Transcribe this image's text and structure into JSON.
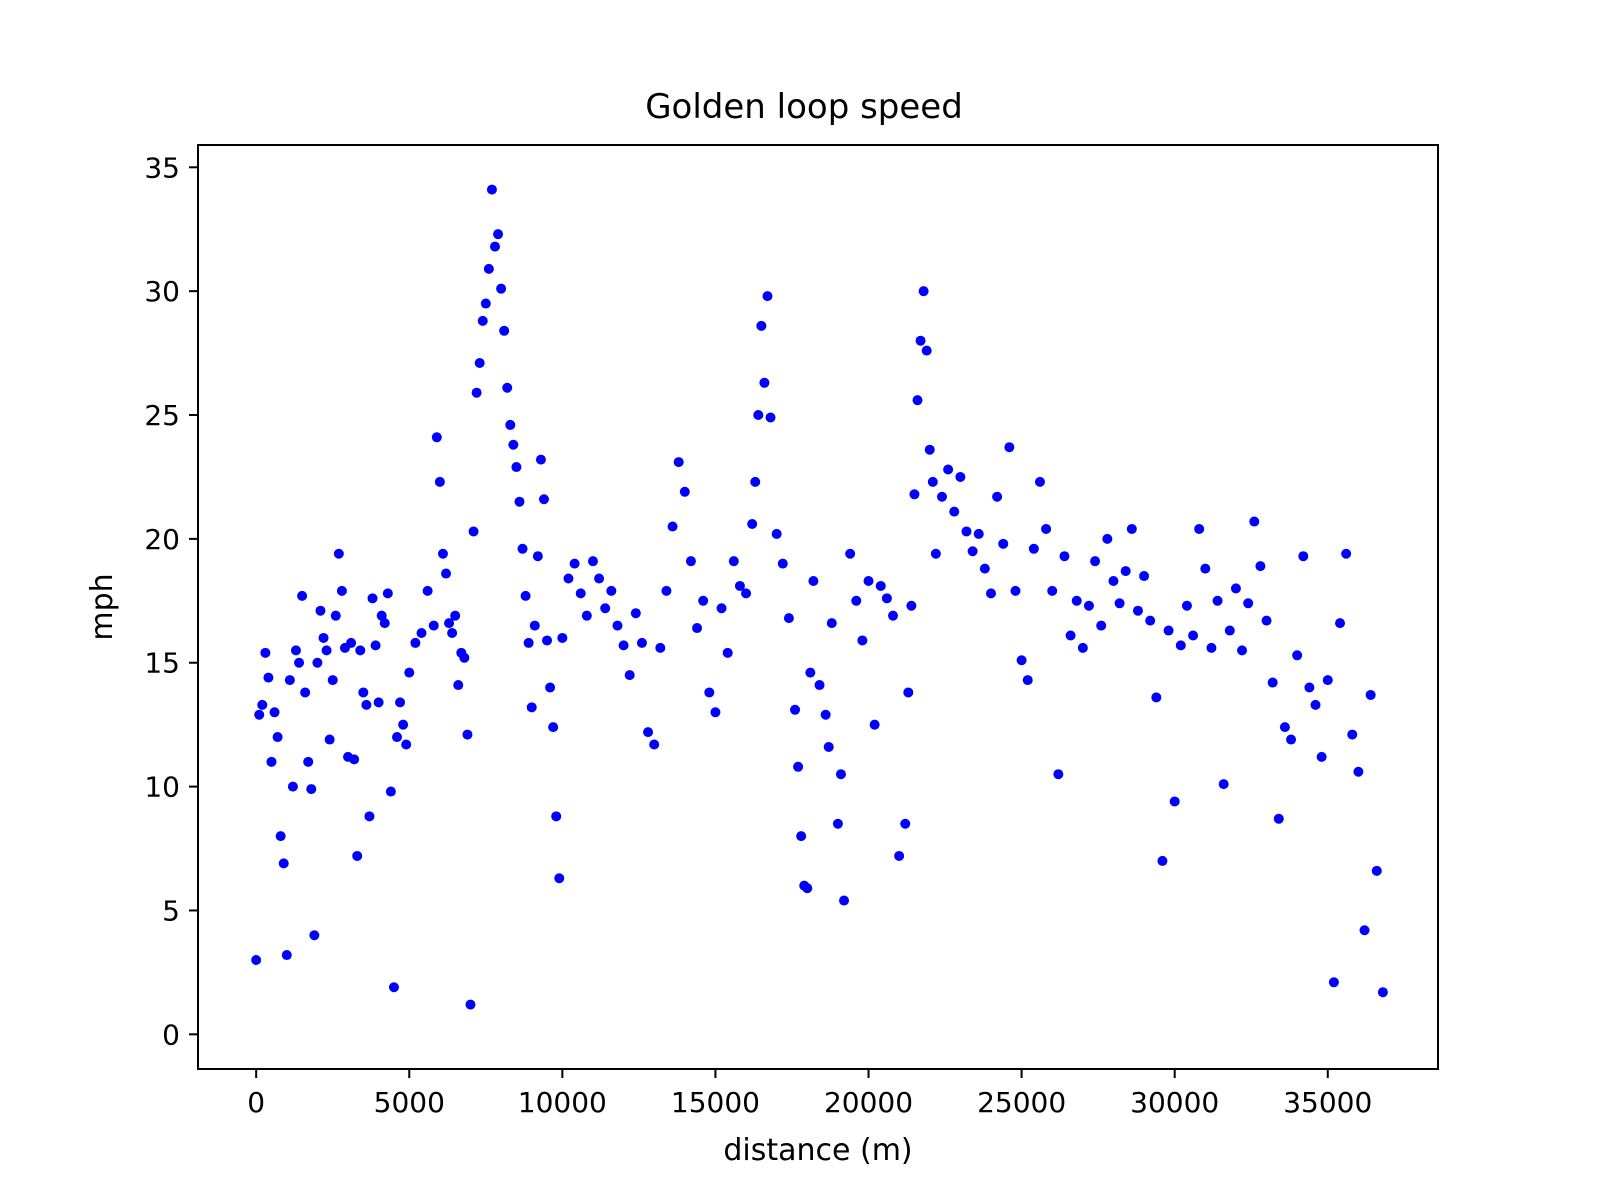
{
  "chart_data": {
    "type": "scatter",
    "title": "Golden loop speed",
    "xlabel": "distance (m)",
    "ylabel": "mph",
    "xlim": [
      -1900,
      38600
    ],
    "ylim": [
      -1.4,
      35.9
    ],
    "xticks": [
      0,
      5000,
      10000,
      15000,
      20000,
      25000,
      30000,
      35000
    ],
    "yticks": [
      0,
      5,
      10,
      15,
      20,
      25,
      30,
      35
    ],
    "grid": false,
    "legend": "none",
    "marker_color": "#0000ff",
    "series": [
      {
        "x": [
          0,
          100,
          200,
          300,
          400,
          500,
          600,
          700,
          800,
          900,
          1000,
          1100,
          1200,
          1300,
          1400,
          1500,
          1600,
          1700,
          1800,
          1900,
          2000,
          2100,
          2200,
          2300,
          2400,
          2500,
          2600,
          2700,
          2800,
          2900,
          3000,
          3100,
          3200,
          3300,
          3400,
          3500,
          3600,
          3700,
          3800,
          3900,
          4000,
          4100,
          4200,
          4300,
          4400,
          4500,
          4600,
          4700,
          4800,
          4900,
          5000,
          5200,
          5400,
          5600,
          5800,
          5900,
          6000,
          6100,
          6200,
          6300,
          6400,
          6500,
          6600,
          6700,
          6800,
          6900,
          7000,
          7100,
          7200,
          7300,
          7400,
          7500,
          7600,
          7700,
          7800,
          7900,
          8000,
          8100,
          8200,
          8300,
          8400,
          8500,
          8600,
          8700,
          8800,
          8900,
          9000,
          9100,
          9200,
          9300,
          9400,
          9500,
          9600,
          9700,
          9800,
          9900,
          10000,
          10200,
          10400,
          10600,
          10800,
          11000,
          11200,
          11400,
          11600,
          11800,
          12000,
          12200,
          12400,
          12600,
          12800,
          13000,
          13200,
          13400,
          13600,
          13800,
          14000,
          14200,
          14400,
          14600,
          14800,
          15000,
          15200,
          15400,
          15600,
          15800,
          16000,
          16200,
          16300,
          16400,
          16500,
          16600,
          16700,
          16800,
          17000,
          17200,
          17400,
          17600,
          17700,
          17800,
          17900,
          18000,
          18100,
          18200,
          18400,
          18600,
          18700,
          18800,
          19000,
          19100,
          19200,
          19400,
          19600,
          19800,
          20000,
          20200,
          20400,
          20600,
          20800,
          21000,
          21200,
          21300,
          21400,
          21500,
          21600,
          21700,
          21800,
          21900,
          22000,
          22100,
          22200,
          22400,
          22600,
          22800,
          23000,
          23200,
          23400,
          23600,
          23800,
          24000,
          24200,
          24400,
          24600,
          24800,
          25000,
          25200,
          25400,
          25600,
          25800,
          26000,
          26200,
          26400,
          26600,
          26800,
          27000,
          27200,
          27400,
          27600,
          27800,
          28000,
          28200,
          28400,
          28600,
          28800,
          29000,
          29200,
          29400,
          29600,
          29800,
          30000,
          30200,
          30400,
          30600,
          30800,
          31000,
          31200,
          31400,
          31600,
          31800,
          32000,
          32200,
          32400,
          32600,
          32800,
          33000,
          33200,
          33400,
          33600,
          33800,
          34000,
          34200,
          34400,
          34600,
          34800,
          35000,
          35200,
          35400,
          35600,
          35800,
          36000,
          36200,
          36400,
          36600,
          36800
        ],
        "y": [
          3.0,
          12.9,
          13.3,
          15.4,
          14.4,
          11.0,
          13.0,
          12.0,
          8.0,
          6.9,
          3.2,
          14.3,
          10.0,
          15.5,
          15.0,
          17.7,
          13.8,
          11.0,
          9.9,
          4.0,
          15.0,
          17.1,
          16.0,
          15.5,
          11.9,
          14.3,
          16.9,
          19.4,
          17.9,
          15.6,
          11.2,
          15.8,
          11.1,
          7.2,
          15.5,
          13.8,
          13.3,
          8.8,
          17.6,
          15.7,
          13.4,
          16.9,
          16.6,
          17.8,
          9.8,
          1.9,
          12.0,
          13.4,
          12.5,
          11.7,
          14.6,
          15.8,
          16.2,
          17.9,
          16.5,
          24.1,
          22.3,
          19.4,
          18.6,
          16.6,
          16.2,
          16.9,
          14.1,
          15.4,
          15.2,
          12.1,
          1.2,
          20.3,
          25.9,
          27.1,
          28.8,
          29.5,
          30.9,
          34.1,
          31.8,
          32.3,
          30.1,
          28.4,
          26.1,
          24.6,
          23.8,
          22.9,
          21.5,
          19.6,
          17.7,
          15.8,
          13.2,
          16.5,
          19.3,
          23.2,
          21.6,
          15.9,
          14.0,
          12.4,
          8.8,
          6.3,
          16.0,
          18.4,
          19.0,
          17.8,
          16.9,
          19.1,
          18.4,
          17.2,
          17.9,
          16.5,
          15.7,
          14.5,
          17.0,
          15.8,
          12.2,
          11.7,
          15.6,
          17.9,
          20.5,
          23.1,
          21.9,
          19.1,
          16.4,
          17.5,
          13.8,
          13.0,
          17.2,
          15.4,
          19.1,
          18.1,
          17.8,
          20.6,
          22.3,
          25.0,
          28.6,
          26.3,
          29.8,
          24.9,
          20.2,
          19.0,
          16.8,
          13.1,
          10.8,
          8.0,
          6.0,
          5.9,
          14.6,
          18.3,
          14.1,
          12.9,
          11.6,
          16.6,
          8.5,
          10.5,
          5.4,
          19.4,
          17.5,
          15.9,
          18.3,
          12.5,
          18.1,
          17.6,
          16.9,
          7.2,
          8.5,
          13.8,
          17.3,
          21.8,
          25.6,
          28.0,
          30.0,
          27.6,
          23.6,
          22.3,
          19.4,
          21.7,
          22.8,
          21.1,
          22.5,
          20.3,
          19.5,
          20.2,
          18.8,
          17.8,
          21.7,
          19.8,
          23.7,
          17.9,
          15.1,
          14.3,
          19.6,
          22.3,
          20.4,
          17.9,
          10.5,
          19.3,
          16.1,
          17.5,
          15.6,
          17.3,
          19.1,
          16.5,
          20.0,
          18.3,
          17.4,
          18.7,
          20.4,
          17.1,
          18.5,
          16.7,
          13.6,
          7.0,
          16.3,
          9.4,
          15.7,
          17.3,
          16.1,
          20.4,
          18.8,
          15.6,
          17.5,
          10.1,
          16.3,
          18.0,
          15.5,
          17.4,
          20.7,
          18.9,
          16.7,
          14.2,
          8.7,
          12.4,
          11.9,
          15.3,
          19.3,
          14.0,
          13.3,
          11.2,
          14.3,
          2.1,
          16.6,
          19.4,
          12.1,
          10.6,
          4.2,
          13.7,
          6.6,
          1.7
        ]
      }
    ]
  }
}
